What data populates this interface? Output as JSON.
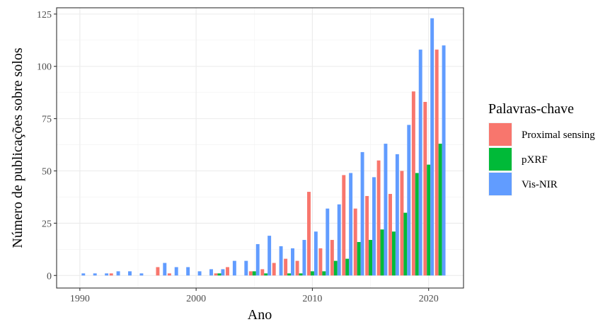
{
  "chart_data": {
    "type": "bar",
    "xlabel": "Ano",
    "ylabel": "Número de publicações sobre solos",
    "xlim": [
      1988,
      2023
    ],
    "ylim": [
      -6,
      128
    ],
    "x_ticks": [
      1990,
      2000,
      2010,
      2020
    ],
    "y_ticks": [
      0,
      25,
      50,
      75,
      100,
      125
    ],
    "grid": true,
    "legend": {
      "title": "Palavras-chave",
      "position": "right"
    },
    "x": [
      1990,
      1991,
      1992,
      1993,
      1994,
      1995,
      1996,
      1997,
      1998,
      1999,
      2000,
      2001,
      2002,
      2003,
      2004,
      2005,
      2006,
      2007,
      2008,
      2009,
      2010,
      2011,
      2012,
      2013,
      2014,
      2015,
      2016,
      2017,
      2018,
      2019,
      2020,
      2021
    ],
    "series": [
      {
        "name": "Proximal sensing",
        "color": "#F8766D",
        "values": [
          0,
          0,
          0,
          1,
          0,
          0,
          0,
          4,
          1,
          0,
          0,
          0,
          1,
          4,
          0,
          2,
          3,
          6,
          8,
          7,
          40,
          13,
          17,
          48,
          32,
          38,
          55,
          39,
          50,
          88,
          83,
          108
        ]
      },
      {
        "name": "pXRF",
        "color": "#00BA38",
        "values": [
          0,
          0,
          0,
          0,
          0,
          0,
          0,
          0,
          0,
          0,
          0,
          0,
          1,
          0,
          0,
          2,
          1,
          0,
          1,
          1,
          2,
          2,
          7,
          8,
          16,
          17,
          22,
          21,
          30,
          49,
          53,
          63
        ]
      },
      {
        "name": "Vis-NIR",
        "color": "#619CFF",
        "values": [
          1,
          1,
          1,
          2,
          2,
          1,
          0,
          6,
          4,
          4,
          2,
          3,
          3,
          7,
          7,
          15,
          19,
          14,
          13,
          17,
          21,
          32,
          34,
          49,
          59,
          47,
          63,
          58,
          72,
          108,
          123,
          110
        ]
      }
    ]
  }
}
